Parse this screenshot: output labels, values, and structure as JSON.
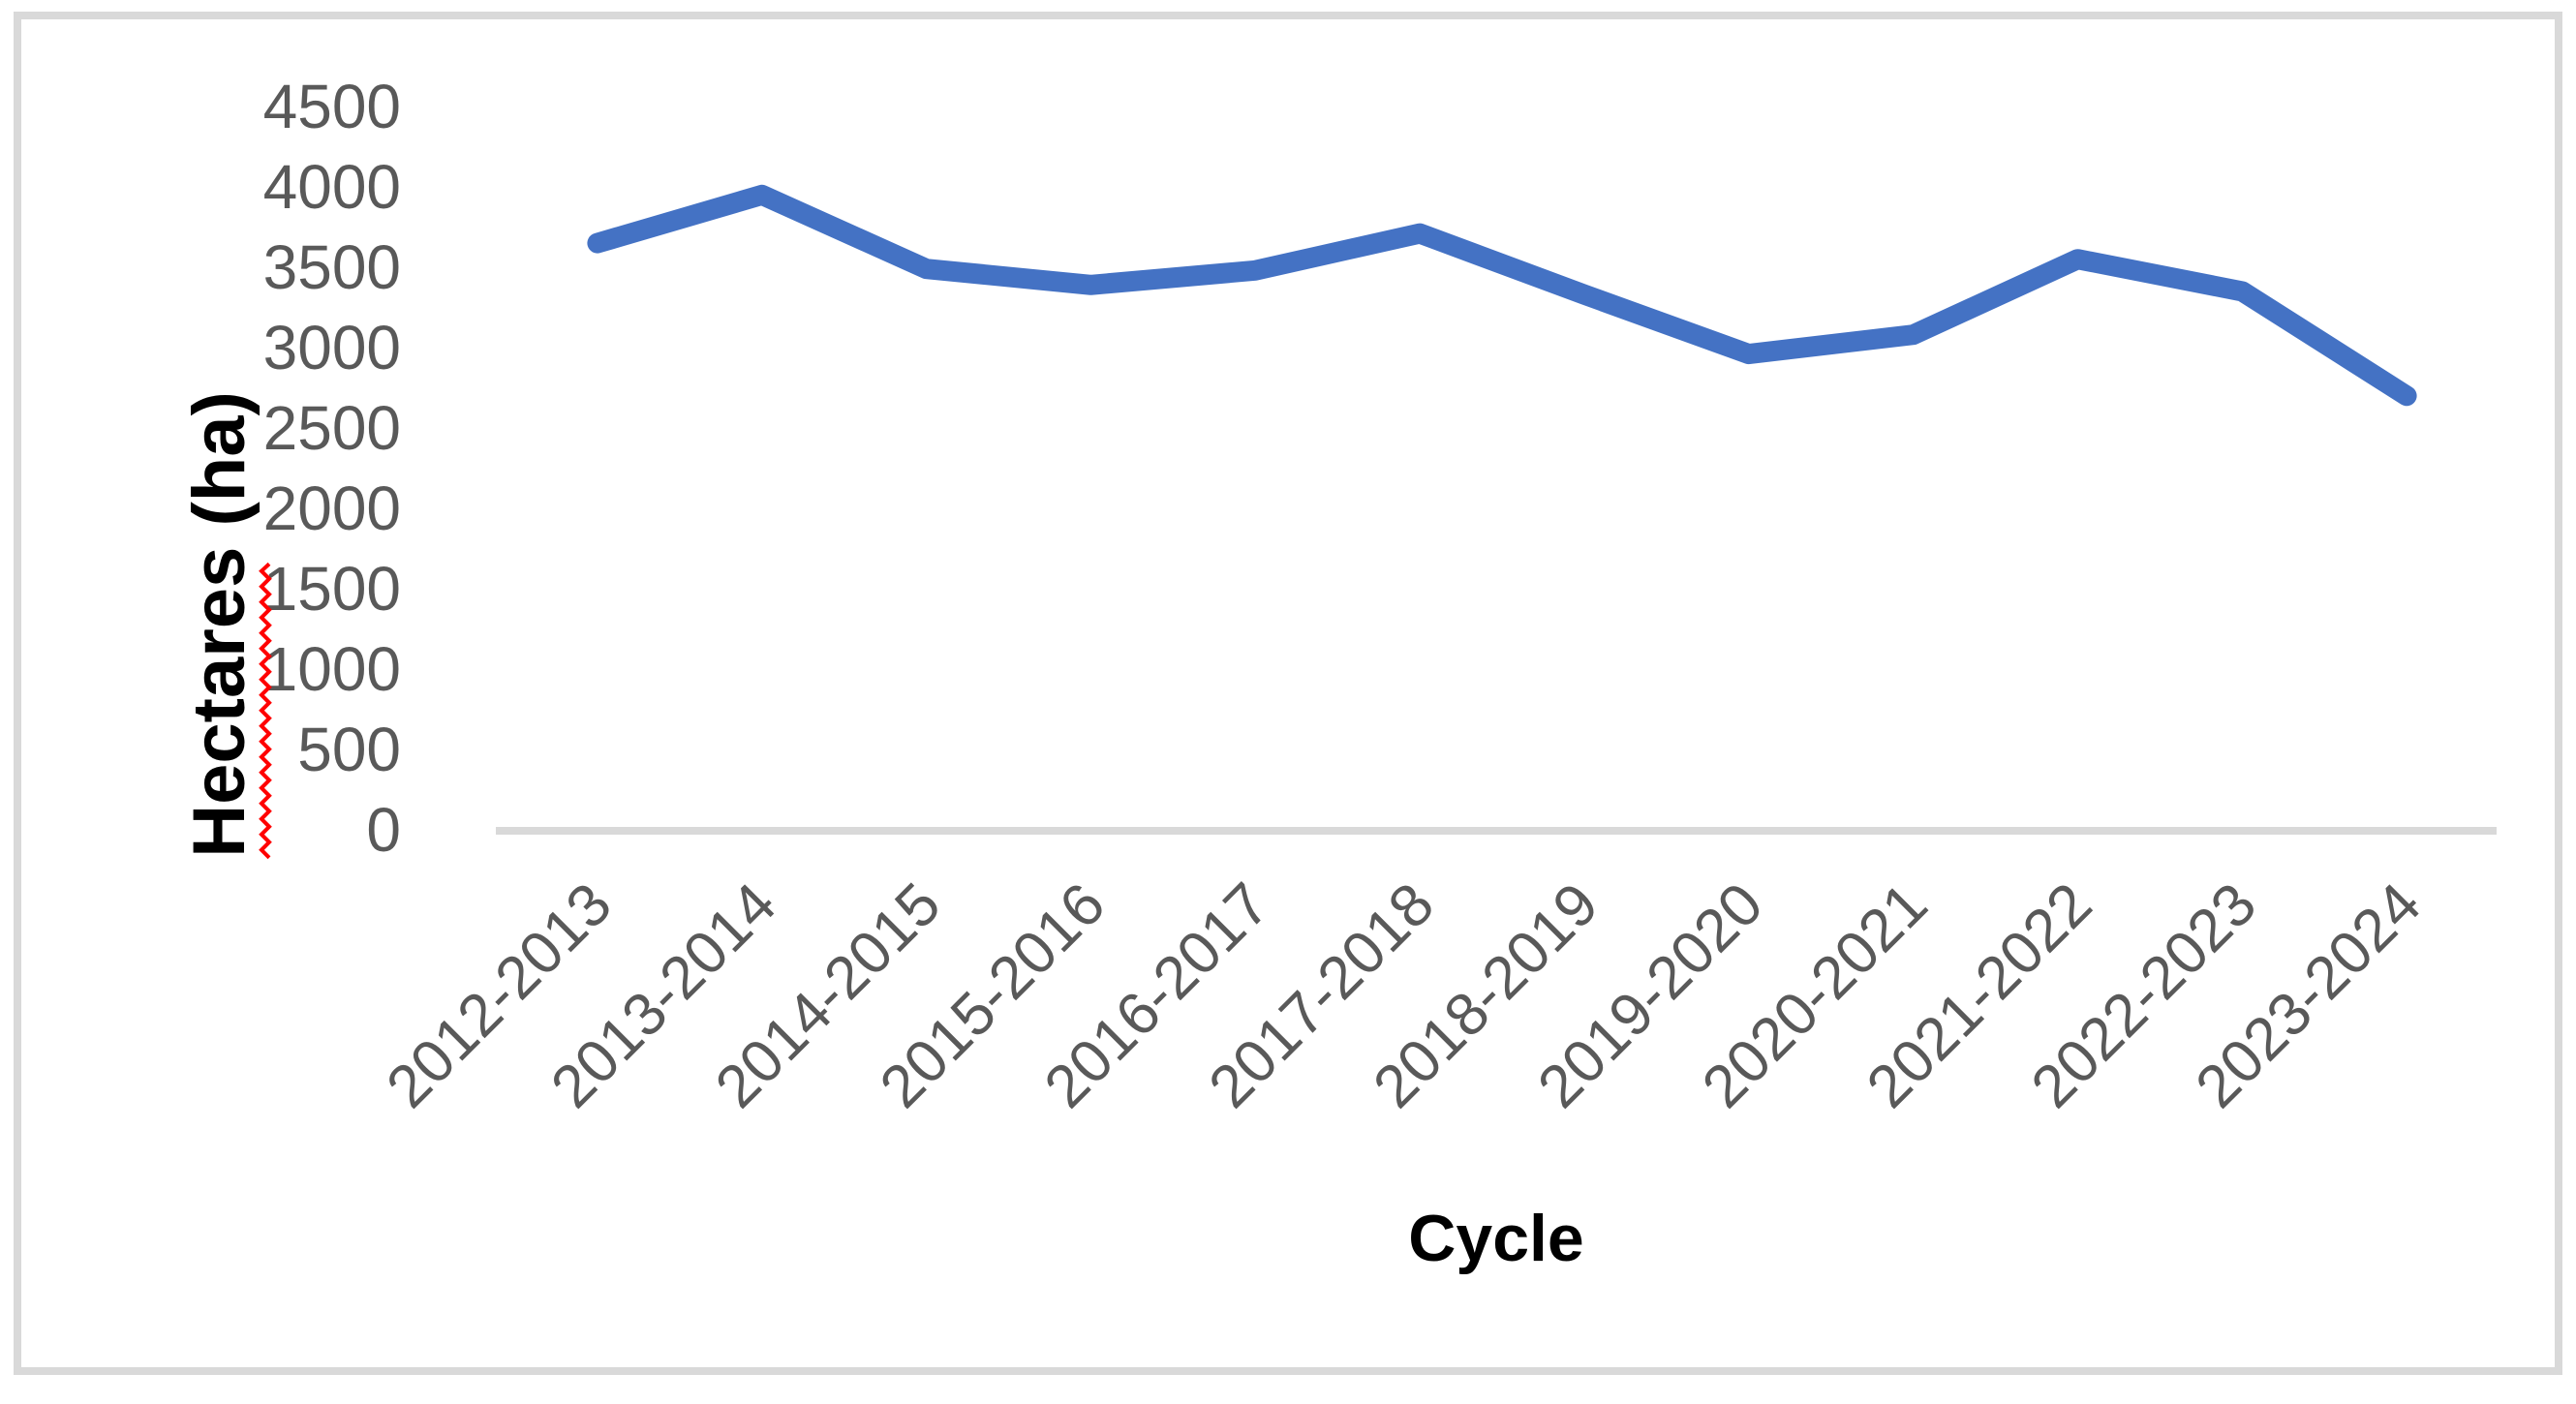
{
  "chart_data": {
    "type": "line",
    "title": "",
    "xlabel": "Cycle",
    "ylabel": "Hectares (ha)",
    "categories": [
      "2012-2013",
      "2013-2014",
      "2014-2015",
      "2015-2016",
      "2016-2017",
      "2017-2018",
      "2018-2019",
      "2019-2020",
      "2020-2021",
      "2021-2022",
      "2022-2023",
      "2023-2024"
    ],
    "series": [
      {
        "name": "Hectares (ha)",
        "values": [
          3650,
          3950,
          3490,
          3390,
          3480,
          3710,
          3330,
          2960,
          3080,
          3550,
          3350,
          2700
        ]
      }
    ],
    "ylim": [
      0,
      4500
    ],
    "ytick_step": 500,
    "ytick_labels": [
      "0",
      "500",
      "1000",
      "1500",
      "2000",
      "2500",
      "3000",
      "3500",
      "4000",
      "4500"
    ],
    "x_tick_rotation_deg": 45,
    "grid": false,
    "legend": "none",
    "colors": {
      "line": "#4472C4",
      "axis_line": "#D9D9D9",
      "figure_border": "#D9D9D9",
      "tick_label": "#595959",
      "axis_title": "#000000",
      "spellcheck_squiggle": "#FF0000",
      "background": "#FFFFFF"
    }
  }
}
